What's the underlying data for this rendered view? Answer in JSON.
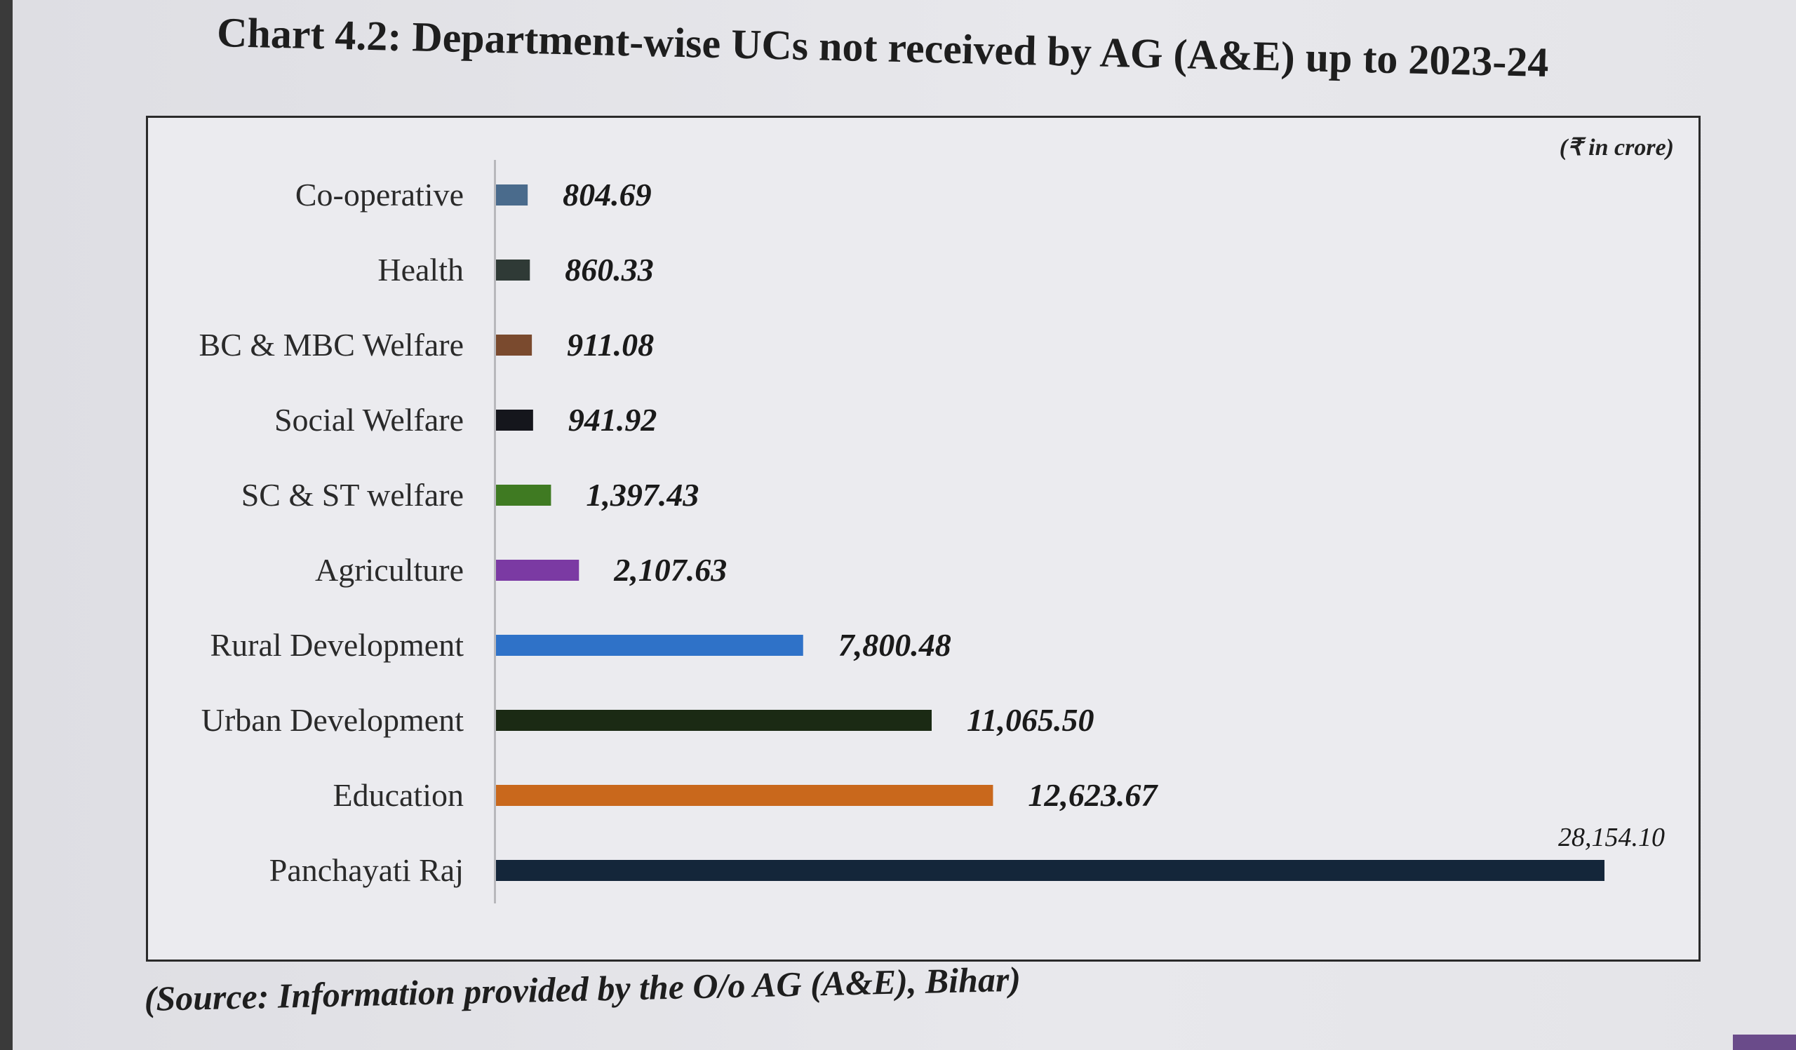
{
  "title": "Chart 4.2: Department-wise UCs not received by AG (A&E) up to 2023-24",
  "unit_note": "(₹ in crore)",
  "source": "(Source: Information provided by the O/o AG (A&E), Bihar)",
  "chart_data": {
    "type": "bar",
    "orientation": "horizontal",
    "title": "Chart 4.2: Department-wise UCs not received by AG (A&E) up to 2023-24",
    "categories": [
      "Co-operative",
      "Health",
      "BC & MBC Welfare",
      "Social Welfare",
      "SC & ST welfare",
      "Agriculture",
      "Rural Development",
      "Urban Development",
      "Education",
      "Panchayati Raj"
    ],
    "values": [
      804.69,
      860.33,
      911.08,
      941.92,
      1397.43,
      2107.63,
      7800.48,
      11065.5,
      12623.67,
      28154.1
    ],
    "value_labels": [
      "804.69",
      "860.33",
      "911.08",
      "941.92",
      "1,397.43",
      "2,107.63",
      "7,800.48",
      "11,065.50",
      "12,623.67",
      "28,154.10"
    ],
    "colors": [
      "#4a6b8c",
      "#2f3a36",
      "#7a4a2e",
      "#15161c",
      "#3f7a22",
      "#7b3aa3",
      "#2f72c8",
      "#1b2a14",
      "#c9681c",
      "#14263a"
    ],
    "xlim": [
      0,
      28154.1
    ],
    "grid": false,
    "legend": "none"
  }
}
